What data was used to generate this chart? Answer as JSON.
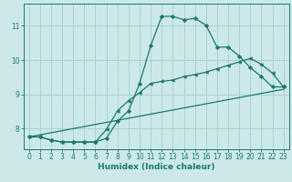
{
  "xlabel": "Humidex (Indice chaleur)",
  "bg_color": "#cce8e8",
  "line_color": "#1a7a6a",
  "grid_color": "#aacccc",
  "xlim": [
    -0.5,
    23.5
  ],
  "ylim": [
    7.4,
    11.65
  ],
  "xticks": [
    0,
    1,
    2,
    3,
    4,
    5,
    6,
    7,
    8,
    9,
    10,
    11,
    12,
    13,
    14,
    15,
    16,
    17,
    18,
    19,
    20,
    21,
    22,
    23
  ],
  "yticks": [
    8,
    9,
    10,
    11
  ],
  "line1_x": [
    0,
    1,
    2,
    3,
    4,
    5,
    6,
    7,
    8,
    9,
    10,
    11,
    12,
    13,
    14,
    15,
    16,
    17,
    18,
    19,
    20,
    21,
    22,
    23
  ],
  "line1_y": [
    7.76,
    7.76,
    7.67,
    7.61,
    7.61,
    7.61,
    7.61,
    7.72,
    8.22,
    8.52,
    9.32,
    10.42,
    11.28,
    11.28,
    11.18,
    11.22,
    11.02,
    10.38,
    10.38,
    10.12,
    9.78,
    9.52,
    9.22,
    9.22
  ],
  "line2_x": [
    0,
    1,
    2,
    3,
    4,
    5,
    6,
    7,
    8,
    9,
    10,
    11,
    12,
    13,
    14,
    15,
    16,
    17,
    18,
    19,
    20,
    21,
    22,
    23
  ],
  "line2_y": [
    7.76,
    7.76,
    7.67,
    7.61,
    7.61,
    7.61,
    7.61,
    7.98,
    8.52,
    8.82,
    9.05,
    9.32,
    9.38,
    9.42,
    9.52,
    9.58,
    9.65,
    9.75,
    9.85,
    9.95,
    10.05,
    9.88,
    9.62,
    9.22
  ],
  "line3_x": [
    0,
    23
  ],
  "line3_y": [
    7.76,
    9.15
  ]
}
